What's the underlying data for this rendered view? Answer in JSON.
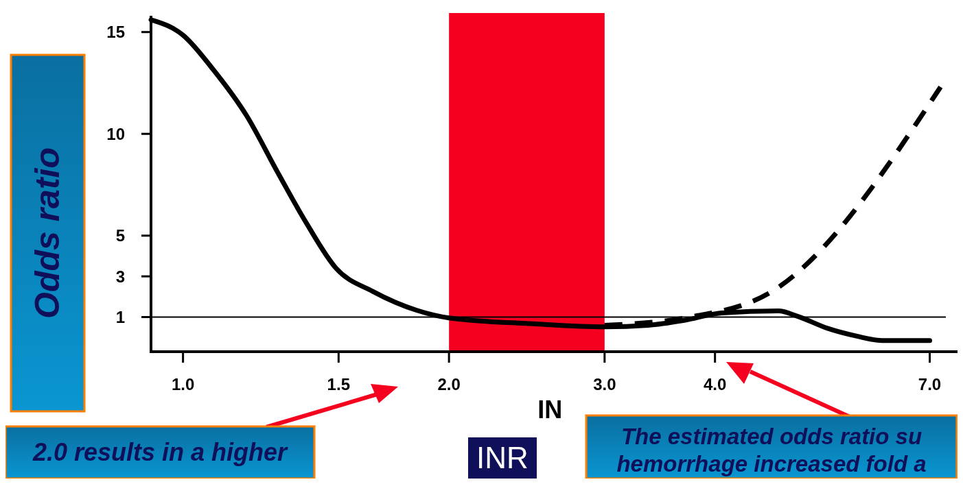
{
  "chart_data": {
    "type": "line",
    "log": "x",
    "xlabel": "IN",
    "ylabel": "Odds ratio",
    "xlim": [
      0.92,
      7.3
    ],
    "ylim": [
      -0.7,
      15.8
    ],
    "xticks": [
      {
        "value": 1,
        "label": "1.0"
      },
      {
        "value": 1.5,
        "label": "1.5"
      },
      {
        "value": 2,
        "label": "2.0"
      },
      {
        "value": 3,
        "label": "3.0"
      },
      {
        "value": 4,
        "label": "4.0"
      },
      {
        "value": 7,
        "label": "7.0"
      }
    ],
    "yticks": [
      1,
      3,
      5,
      10,
      15
    ],
    "series": [
      {
        "color": "#000000",
        "line_style": "solid",
        "x": [
          0.92,
          1.0,
          1.08,
          1.18,
          1.28,
          1.38,
          1.49,
          1.64,
          1.84,
          2.0,
          2.49,
          3.0,
          3.36,
          3.7,
          4.07,
          4.72,
          4.96,
          5.37,
          5.78,
          6.18,
          7.0
        ],
        "values": [
          15.6,
          14.85,
          13.2,
          10.9,
          8.1,
          5.6,
          3.4,
          2.26,
          1.33,
          0.96,
          0.67,
          0.52,
          0.6,
          0.85,
          1.2,
          1.3,
          1.04,
          0.44,
          0.07,
          -0.15,
          -0.15
        ]
      },
      {
        "color": "#000000",
        "line_style": "dashed",
        "x": [
          3.0,
          3.7,
          4.64,
          7.2
        ],
        "values": [
          0.6,
          0.96,
          2.26,
          12.3
        ]
      }
    ],
    "bands": [
      {
        "axis": "x",
        "from": 2,
        "to": 3,
        "color": "#f5001e"
      }
    ],
    "ref_lines": [
      {
        "axis": "y",
        "value": 1,
        "color": "#000000"
      }
    ],
    "annotations": [
      "INR",
      "2.0 results in a higher",
      "The estimated odds ratio su",
      "hemorrhage increased fold a"
    ]
  }
}
